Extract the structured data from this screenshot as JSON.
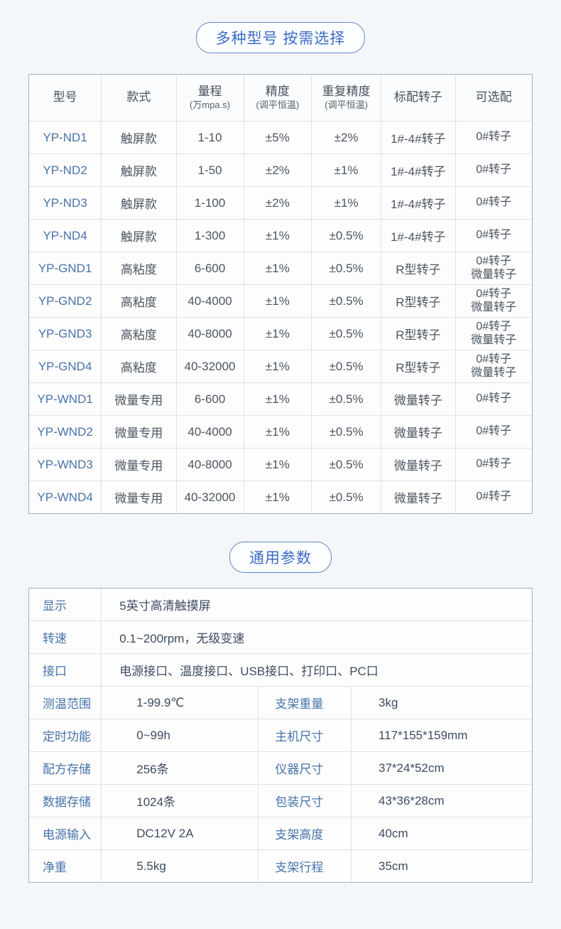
{
  "colors": {
    "page_bg": "#f4f7fa",
    "accent_blue": "#4673a8",
    "title_blue": "#3b6cc6",
    "value_dark": "#4c555f",
    "grid_line": "#dee2e7"
  },
  "sections": {
    "models": {
      "title": "多种型号 按需选择",
      "table": {
        "columns": [
          {
            "label": "型号",
            "sub": ""
          },
          {
            "label": "款式",
            "sub": ""
          },
          {
            "label": "量程",
            "sub": "(万mpa.s)"
          },
          {
            "label": "精度",
            "sub": "(调平恒温)"
          },
          {
            "label": "重复精度",
            "sub": "(调平恒温)"
          },
          {
            "label": "标配转子",
            "sub": ""
          },
          {
            "label": "可选配",
            "sub": ""
          }
        ],
        "rows": [
          [
            "YP-ND1",
            "触屏款",
            "1-10",
            "±5%",
            "±2%",
            "1#-4#转子",
            "0#转子"
          ],
          [
            "YP-ND2",
            "触屏款",
            "1-50",
            "±2%",
            "±1%",
            "1#-4#转子",
            "0#转子"
          ],
          [
            "YP-ND3",
            "触屏款",
            "1-100",
            "±2%",
            "±1%",
            "1#-4#转子",
            "0#转子"
          ],
          [
            "YP-ND4",
            "触屏款",
            "1-300",
            "±1%",
            "±0.5%",
            "1#-4#转子",
            "0#转子"
          ],
          [
            "YP-GND1",
            "高粘度",
            "6-600",
            "±1%",
            "±0.5%",
            "R型转子",
            "0#转子\n微量转子"
          ],
          [
            "YP-GND2",
            "高粘度",
            "40-4000",
            "±1%",
            "±0.5%",
            "R型转子",
            "0#转子\n微量转子"
          ],
          [
            "YP-GND3",
            "高粘度",
            "40-8000",
            "±1%",
            "±0.5%",
            "R型转子",
            "0#转子\n微量转子"
          ],
          [
            "YP-GND4",
            "高粘度",
            "40-32000",
            "±1%",
            "±0.5%",
            "R型转子",
            "0#转子\n微量转子"
          ],
          [
            "YP-WND1",
            "微量专用",
            "6-600",
            "±1%",
            "±0.5%",
            "微量转子",
            "0#转子"
          ],
          [
            "YP-WND2",
            "微量专用",
            "40-4000",
            "±1%",
            "±0.5%",
            "微量转子",
            "0#转子"
          ],
          [
            "YP-WND3",
            "微量专用",
            "40-8000",
            "±1%",
            "±0.5%",
            "微量转子",
            "0#转子"
          ],
          [
            "YP-WND4",
            "微量专用",
            "40-32000",
            "±1%",
            "±0.5%",
            "微量转子",
            "0#转子"
          ]
        ]
      }
    },
    "params": {
      "title": "通用参数",
      "table": {
        "rows": [
          {
            "full": true,
            "label": "显示",
            "value": "5英寸高清触摸屏"
          },
          {
            "full": true,
            "label": "转速",
            "value": "0.1~200rpm，无级变速"
          },
          {
            "full": true,
            "label": "接口",
            "value": "电源接口、温度接口、USB接口、打印口、PC口"
          },
          {
            "full": false,
            "label": "测温范围",
            "value": "1-99.9℃",
            "label2": "支架重量",
            "value2": "3kg"
          },
          {
            "full": false,
            "label": "定时功能",
            "value": "0~99h",
            "label2": "主机尺寸",
            "value2": "117*155*159mm"
          },
          {
            "full": false,
            "label": "配方存储",
            "value": "256条",
            "label2": "仪器尺寸",
            "value2": "37*24*52cm"
          },
          {
            "full": false,
            "label": "数据存储",
            "value": "1024条",
            "label2": "包装尺寸",
            "value2": "43*36*28cm"
          },
          {
            "full": false,
            "label": "电源输入",
            "value": "DC12V 2A",
            "label2": "支架高度",
            "value2": "40cm"
          },
          {
            "full": false,
            "label": "净重",
            "value": "5.5kg",
            "label2": "支架行程",
            "value2": "35cm"
          }
        ]
      }
    }
  }
}
